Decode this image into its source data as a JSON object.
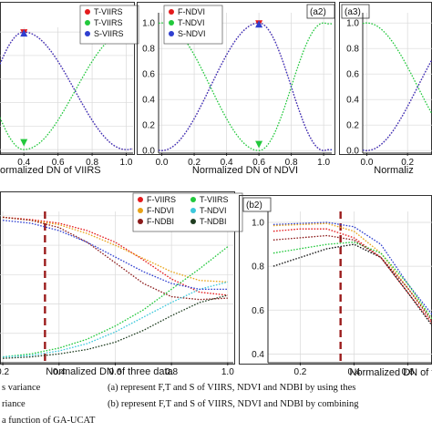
{
  "chart_data": [
    {
      "id": "a1",
      "type": "line",
      "panel_label": "",
      "xlabel": "ormalized DN of VIIRS",
      "xticks": [
        {
          "v": 0.4,
          "t": "0.4"
        },
        {
          "v": 0.6,
          "t": "0.6"
        },
        {
          "v": 0.8,
          "t": "0.8"
        },
        {
          "v": 1.0,
          "t": "1.0"
        }
      ],
      "yticks": [],
      "xlim": [
        0.26,
        1.04
      ],
      "ylim": [
        -0.03,
        1.04
      ],
      "grid": true,
      "legend_position": "top-right",
      "series": [
        {
          "name": "T-VIIRS",
          "color": "#e41a1c",
          "shape": "peak",
          "peak": 0.4,
          "power": 2
        },
        {
          "name": "T-VIIRS",
          "color": "#22c83c",
          "shape": "valley",
          "peak": 0.4,
          "power": 2
        },
        {
          "name": "S-VIIRS",
          "color": "#2f3fd0",
          "shape": "peak",
          "peak": 0.4,
          "power": 2
        }
      ],
      "markers": [
        {
          "x": 0.4,
          "y": 0.985,
          "dir": "down",
          "color": "#e41a1c"
        },
        {
          "x": 0.4,
          "y": 0.985,
          "dir": "up",
          "color": "#2f3fd0"
        },
        {
          "x": 0.4,
          "y": 0.05,
          "dir": "down",
          "color": "#22c83c"
        }
      ]
    },
    {
      "id": "a2",
      "type": "line",
      "panel_label": "(a2)",
      "xlabel": "Normalized DN of NDVI",
      "xticks": [
        {
          "v": 0.0,
          "t": "0.0"
        },
        {
          "v": 0.2,
          "t": "0.2"
        },
        {
          "v": 0.4,
          "t": "0.4"
        },
        {
          "v": 0.6,
          "t": "0.6"
        },
        {
          "v": 0.8,
          "t": "0.8"
        },
        {
          "v": 1.0,
          "t": "1.0"
        }
      ],
      "yticks": [
        {
          "v": 0.0,
          "t": "0.0"
        },
        {
          "v": 0.2,
          "t": "0.2"
        },
        {
          "v": 0.4,
          "t": "0.4"
        },
        {
          "v": 0.6,
          "t": "0.6"
        },
        {
          "v": 0.8,
          "t": "0.8"
        },
        {
          "v": 1.0,
          "t": "1.0"
        }
      ],
      "xlim": [
        -0.02,
        1.05
      ],
      "ylim": [
        -0.02,
        1.08
      ],
      "grid": true,
      "legend_position": "top-left",
      "series": [
        {
          "name": "F-NDVI",
          "color": "#e41a1c",
          "shape": "peak",
          "peak": 0.6,
          "power": 2
        },
        {
          "name": "T-NDVI",
          "color": "#22c83c",
          "shape": "valley",
          "peak": 0.6,
          "power": 2
        },
        {
          "name": "S-NDVI",
          "color": "#2f3fd0",
          "shape": "peak",
          "peak": 0.6,
          "power": 2
        }
      ],
      "markers": [
        {
          "x": 0.6,
          "y": 0.985,
          "dir": "down",
          "color": "#e41a1c"
        },
        {
          "x": 0.6,
          "y": 0.985,
          "dir": "up",
          "color": "#2f3fd0"
        },
        {
          "x": 0.6,
          "y": 0.04,
          "dir": "down",
          "color": "#22c83c"
        }
      ]
    },
    {
      "id": "a3",
      "type": "line",
      "panel_label": "(a3)",
      "xlabel": "Normaliz",
      "xticks": [
        {
          "v": 0.0,
          "t": "0.0"
        },
        {
          "v": 0.2,
          "t": "0.2"
        }
      ],
      "yticks": [
        {
          "v": 0.0,
          "t": "0.0"
        },
        {
          "v": 0.2,
          "t": "0.2"
        },
        {
          "v": 0.4,
          "t": "0.4"
        },
        {
          "v": 0.6,
          "t": "0.6"
        },
        {
          "v": 0.8,
          "t": "0.8"
        },
        {
          "v": 1.0,
          "t": "1.0"
        }
      ],
      "xlim": [
        -0.02,
        0.32
      ],
      "ylim": [
        -0.02,
        1.08
      ],
      "grid": true,
      "legend_position": "",
      "series": [
        {
          "name": "",
          "color": "#e41a1c",
          "shape": "peak",
          "peak": 0.5,
          "power": 2
        },
        {
          "name": "",
          "color": "#22c83c",
          "shape": "valley",
          "peak": 0.5,
          "power": 2
        },
        {
          "name": "",
          "color": "#2f3fd0",
          "shape": "peak",
          "peak": 0.5,
          "power": 2
        }
      ],
      "markers": []
    },
    {
      "id": "b1",
      "type": "line",
      "panel_label": "",
      "xlabel": "Normalized DN of three data",
      "xticks": [
        {
          "v": 0.2,
          "t": "0.2"
        },
        {
          "v": 0.4,
          "t": "0.4"
        },
        {
          "v": 0.6,
          "t": "0.6"
        },
        {
          "v": 0.8,
          "t": "0.8"
        },
        {
          "v": 1.0,
          "t": "1.0"
        }
      ],
      "yticks": [],
      "xlim": [
        0.19,
        1.02
      ],
      "ylim": [
        0.0,
        1.03
      ],
      "grid": true,
      "legend_position": "top-right",
      "vline": 0.35,
      "series": [
        {
          "name": "F-VIIRS",
          "color": "#e41a1c",
          "x": [
            0.2,
            0.3,
            0.4,
            0.5,
            0.6,
            0.7,
            0.8,
            0.9,
            1.0
          ],
          "y": [
            0.99,
            0.975,
            0.95,
            0.9,
            0.82,
            0.7,
            0.57,
            0.48,
            0.46
          ]
        },
        {
          "name": "F-NDVI",
          "color": "#e8a317",
          "x": [
            0.2,
            0.3,
            0.4,
            0.5,
            0.6,
            0.7,
            0.8,
            0.9,
            1.0
          ],
          "y": [
            0.99,
            0.97,
            0.94,
            0.88,
            0.8,
            0.71,
            0.62,
            0.56,
            0.55
          ]
        },
        {
          "name": "F-NDBI",
          "color": "#8b1a1a",
          "x": [
            0.2,
            0.3,
            0.4,
            0.5,
            0.6,
            0.7,
            0.8,
            0.9,
            1.0
          ],
          "y": [
            0.99,
            0.97,
            0.92,
            0.82,
            0.68,
            0.54,
            0.45,
            0.43,
            0.44
          ]
        },
        {
          "name": "T-VIIRS",
          "color": "#22c83c",
          "x": [
            0.2,
            0.3,
            0.4,
            0.5,
            0.6,
            0.7,
            0.8,
            0.9,
            1.0
          ],
          "y": [
            0.04,
            0.06,
            0.1,
            0.16,
            0.25,
            0.36,
            0.5,
            0.64,
            0.79
          ]
        },
        {
          "name": "T-NDVI",
          "color": "#3cc8dc",
          "x": [
            0.2,
            0.3,
            0.4,
            0.5,
            0.6,
            0.7,
            0.8,
            0.9,
            1.0
          ],
          "y": [
            0.04,
            0.05,
            0.08,
            0.13,
            0.21,
            0.31,
            0.41,
            0.5,
            0.55
          ]
        },
        {
          "name": "T-NDBI",
          "color": "#1f3d20",
          "x": [
            0.2,
            0.3,
            0.4,
            0.5,
            0.6,
            0.7,
            0.8,
            0.9,
            1.0
          ],
          "y": [
            0.03,
            0.04,
            0.06,
            0.09,
            0.14,
            0.22,
            0.32,
            0.41,
            0.46
          ]
        },
        {
          "name": "",
          "color": "#2f3fd0",
          "x": [
            0.2,
            0.3,
            0.4,
            0.5,
            0.6,
            0.7,
            0.8,
            0.9,
            1.0
          ],
          "y": [
            0.97,
            0.95,
            0.9,
            0.82,
            0.72,
            0.62,
            0.54,
            0.5,
            0.5
          ]
        }
      ]
    },
    {
      "id": "b2",
      "type": "line",
      "panel_label": "(b2)",
      "xlabel": "Normalized DN of t",
      "xticks": [
        {
          "v": 0.2,
          "t": "0.2"
        },
        {
          "v": 0.4,
          "t": "0.4"
        },
        {
          "v": 0.6,
          "t": "0.6"
        }
      ],
      "yticks": [
        {
          "v": 0.4,
          "t": "0.4"
        },
        {
          "v": 0.6,
          "t": "0.6"
        },
        {
          "v": 0.8,
          "t": "0.8"
        },
        {
          "v": 1.0,
          "t": "1.0"
        }
      ],
      "xlim": [
        0.08,
        0.69
      ],
      "ylim": [
        0.36,
        1.05
      ],
      "grid": true,
      "legend_position": "",
      "vline": 0.35,
      "series": [
        {
          "name": "",
          "color": "#2f3fd0",
          "x": [
            0.1,
            0.2,
            0.3,
            0.4,
            0.5,
            0.6,
            0.69
          ],
          "y": [
            0.99,
            0.995,
            1.0,
            0.98,
            0.9,
            0.72,
            0.58
          ]
        },
        {
          "name": "",
          "color": "#e8a317",
          "x": [
            0.1,
            0.2,
            0.3,
            0.4,
            0.5,
            0.6,
            0.69
          ],
          "y": [
            0.985,
            0.99,
            0.995,
            0.96,
            0.86,
            0.7,
            0.56
          ]
        },
        {
          "name": "",
          "color": "#e41a1c",
          "x": [
            0.1,
            0.2,
            0.3,
            0.4,
            0.5,
            0.6,
            0.69
          ],
          "y": [
            0.96,
            0.97,
            0.97,
            0.93,
            0.84,
            0.68,
            0.54
          ]
        },
        {
          "name": "",
          "color": "#22c83c",
          "x": [
            0.1,
            0.2,
            0.3,
            0.4,
            0.5,
            0.6,
            0.69
          ],
          "y": [
            0.86,
            0.88,
            0.9,
            0.91,
            0.86,
            0.72,
            0.56
          ]
        },
        {
          "name": "",
          "color": "#111111",
          "x": [
            0.1,
            0.2,
            0.3,
            0.4,
            0.5,
            0.6,
            0.69
          ],
          "y": [
            0.8,
            0.84,
            0.88,
            0.9,
            0.84,
            0.68,
            0.53
          ]
        },
        {
          "name": "",
          "color": "#8b1a1a",
          "x": [
            0.1,
            0.2,
            0.3,
            0.4,
            0.5,
            0.6,
            0.69
          ],
          "y": [
            0.92,
            0.93,
            0.94,
            0.92,
            0.84,
            0.7,
            0.55
          ]
        }
      ]
    }
  ],
  "footnote": {
    "left": [
      "s variance",
      "riance",
      "a function of GA-UCAT"
    ],
    "right": [
      "(a) represent F,T and S of VIIRS, NDVI and NDBI by using thes",
      "(b) represent F,T and S of VIIRS, NDVI and NDBI by combining"
    ]
  }
}
